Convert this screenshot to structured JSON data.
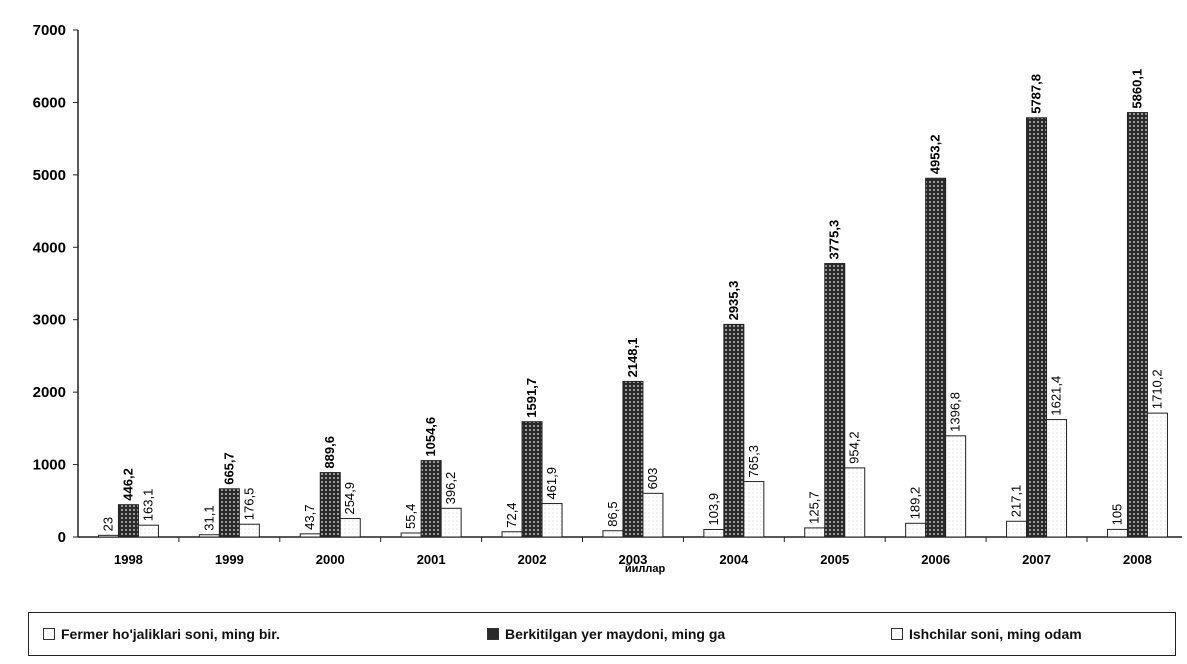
{
  "chart_data": {
    "type": "bar",
    "categories": [
      "1998",
      "1999",
      "2000",
      "2001",
      "2002",
      "2003",
      "2004",
      "2005",
      "2006",
      "2007",
      "2008"
    ],
    "xlabel": "йиллар",
    "ylim": [
      0,
      7000
    ],
    "yticks": [
      "0",
      "1000",
      "2000",
      "3000",
      "4000",
      "5000",
      "6000",
      "7000"
    ],
    "legend_position": "bottom",
    "series": [
      {
        "name": "Fermer ho'jaliklari soni, ming bir.",
        "values": [
          23,
          31.1,
          43.7,
          55.4,
          72.4,
          86.5,
          103.9,
          125.7,
          189.2,
          217.1,
          105
        ],
        "labels": [
          "23",
          "31,1",
          "43,7",
          "55,4",
          "72,4",
          "86,5",
          "103,9",
          "125,7",
          "189,2",
          "217,1",
          "105"
        ],
        "color": "#ffffff"
      },
      {
        "name": "Berkitilgan yer maydoni, ming ga",
        "values": [
          446.2,
          665.7,
          889.6,
          1054.6,
          1591.7,
          2148.1,
          2935.3,
          3775.3,
          4953.2,
          5787.8,
          5860.1
        ],
        "labels": [
          "446,2",
          "665,7",
          "889,6",
          "1054,6",
          "1591,7",
          "2148,1",
          "2935,3",
          "3775,3",
          "4953,2",
          "5787,8",
          "5860,1"
        ],
        "color": "#3a3a3a"
      },
      {
        "name": "Ishchilar soni, ming odam",
        "values": [
          163.1,
          176.5,
          254.9,
          396.2,
          461.9,
          603,
          765.3,
          954.2,
          1396.8,
          1621.4,
          1710.2
        ],
        "labels": [
          "163,1",
          "176,5",
          "254,9",
          "396,2",
          "461,9",
          "603",
          "765,3",
          "954,2",
          "1396,8",
          "1621,4",
          "1710,2"
        ],
        "color": "#ffffff"
      }
    ]
  }
}
